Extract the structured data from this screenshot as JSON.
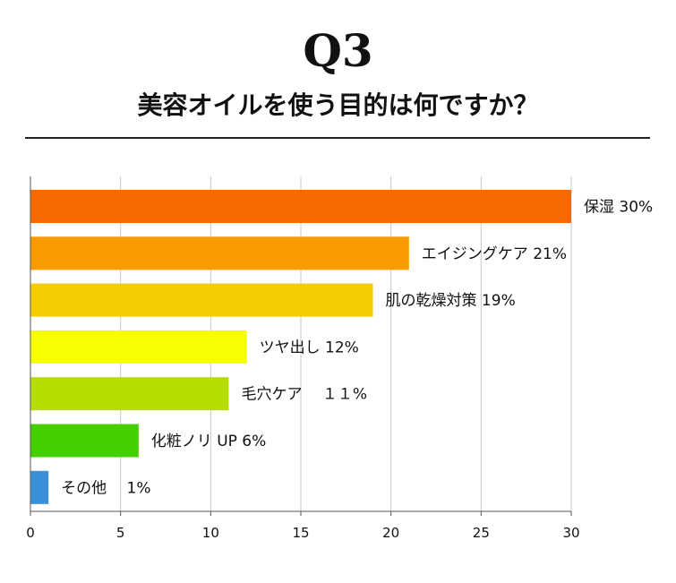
{
  "header": {
    "question": "Q3",
    "title": "美容オイルを使う目的は何ですか？"
  },
  "chart_data": {
    "type": "bar",
    "orientation": "horizontal",
    "categories": [
      "保湿",
      "エイジングケア",
      "肌の乾燥対策",
      "ツヤ出し",
      "毛穴ケア",
      "化粧ノリUP",
      "その他"
    ],
    "values": [
      30,
      21,
      19,
      12,
      11,
      6,
      1
    ],
    "labels": [
      "保湿 30%",
      "エイジングケア 21%",
      "肌の乾燥対策 19%",
      "ツヤ出し 12%",
      "毛穴ケア　 １１%",
      "化粧ノリ UP 6%",
      "その他　 1%"
    ],
    "colors": [
      "#f56a00",
      "#f89a00",
      "#f5cc00",
      "#f5ff00",
      "#b5de00",
      "#44d000",
      "#3b8fd6"
    ],
    "xlim": [
      0,
      30
    ],
    "xticks": [
      0,
      5,
      10,
      15,
      20,
      25,
      30
    ],
    "grid": true,
    "title": "美容オイルを使う目的は何ですか？",
    "xlabel": "",
    "ylabel": ""
  }
}
